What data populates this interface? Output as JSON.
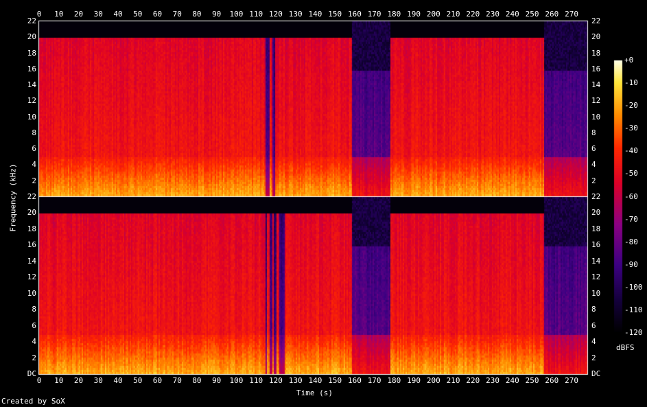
{
  "chart_data": {
    "type": "heatmap",
    "title": "",
    "xlabel": "Time (s)",
    "ylabel": "Frequency (kHz)",
    "xlim": [
      0,
      278
    ],
    "ylim_khz": [
      0,
      22
    ],
    "x_ticks": [
      "0",
      "10",
      "20",
      "30",
      "40",
      "50",
      "60",
      "70",
      "80",
      "90",
      "100",
      "110",
      "120",
      "130",
      "140",
      "150",
      "160",
      "170",
      "180",
      "190",
      "200",
      "210",
      "220",
      "230",
      "240",
      "250",
      "260",
      "270"
    ],
    "y_ticks_left": [
      "DC",
      "2",
      "4",
      "6",
      "8",
      "10",
      "12",
      "14",
      "16",
      "18",
      "20",
      "22"
    ],
    "y_ticks_top_panel": [
      "2",
      "4",
      "6",
      "8",
      "10",
      "12",
      "14",
      "16",
      "18",
      "20",
      "22"
    ],
    "channels": 2,
    "colorbar": {
      "label": "dBFS",
      "range": [
        -120,
        0
      ],
      "ticks": [
        "+0",
        "-10",
        "-20",
        "-30",
        "-40",
        "-50",
        "-60",
        "-70",
        "-80",
        "-90",
        "-100",
        "-110",
        "-120"
      ]
    },
    "segments_khz_cutoff": [
      {
        "t_start": 0,
        "t_end": 113,
        "cutoff_khz": 20
      },
      {
        "t_start": 113,
        "t_end": 124,
        "cutoff_khz": 20
      },
      {
        "t_start": 124,
        "t_end": 158,
        "cutoff_khz": 20
      },
      {
        "t_start": 158,
        "t_end": 178,
        "cutoff_khz": 16
      },
      {
        "t_start": 178,
        "t_end": 256,
        "cutoff_khz": 20
      },
      {
        "t_start": 256,
        "t_end": 278,
        "cutoff_khz": 16
      }
    ]
  },
  "footer": {
    "credit": "Created by SoX"
  },
  "colors": {
    "background": "#000000",
    "axis": "#ffffff"
  }
}
